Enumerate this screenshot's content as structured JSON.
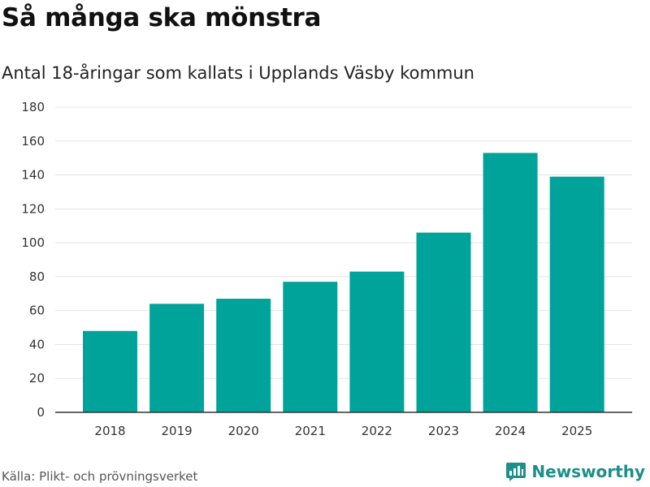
{
  "header": {
    "title": "Så många ska mönstra",
    "subtitle": "Antal 18-åringar som kallats i Upplands Väsby kommun"
  },
  "footer": {
    "source": "Källa: Plikt- och prövningsverket",
    "brand": "Newsworthy"
  },
  "colors": {
    "bar": "#00A39A",
    "grid": "#e3e3e3",
    "axis": "#333333",
    "brand": "#1d8f8a"
  },
  "icons": {
    "brand_logo": "newsworthy-logo-icon"
  },
  "chart_data": {
    "type": "bar",
    "title": "Så många ska mönstra",
    "subtitle": "Antal 18-åringar som kallats i Upplands Väsby kommun",
    "xlabel": "",
    "ylabel": "",
    "categories": [
      "2018",
      "2019",
      "2020",
      "2021",
      "2022",
      "2023",
      "2024",
      "2025"
    ],
    "values": [
      48,
      64,
      67,
      77,
      83,
      106,
      153,
      139
    ],
    "ylim": [
      0,
      180
    ],
    "yticks": [
      0,
      20,
      40,
      60,
      80,
      100,
      120,
      140,
      160,
      180
    ],
    "grid": true,
    "legend": "none"
  }
}
